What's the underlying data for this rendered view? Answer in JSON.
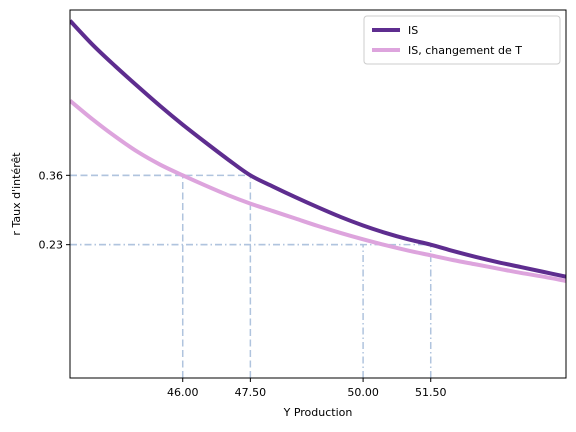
{
  "chart_data": {
    "type": "line",
    "xlabel": "Y Production",
    "ylabel": "r Taux d'intérêt",
    "xlim": [
      43.5,
      54.5
    ],
    "ylim": [
      -0.02,
      0.67
    ],
    "x_ticks": [
      46.0,
      47.5,
      50.0,
      51.5
    ],
    "x_tick_labels": [
      "46.00",
      "47.50",
      "50.00",
      "51.50"
    ],
    "y_ticks": [
      0.23,
      0.36
    ],
    "y_tick_labels": [
      "0.23",
      "0.36"
    ],
    "grid": false,
    "legend_position": "top-right",
    "series": [
      {
        "name": "IS",
        "color": "#5e2d8f",
        "x": [
          43.5,
          44.0,
          44.5,
          45.0,
          45.5,
          46.0,
          46.5,
          47.0,
          47.5,
          48.0,
          48.5,
          49.0,
          49.5,
          50.0,
          50.5,
          51.0,
          51.5,
          52.0,
          52.5,
          53.0,
          53.5,
          54.0,
          54.5
        ],
        "y": [
          0.65,
          0.605,
          0.565,
          0.527,
          0.49,
          0.455,
          0.422,
          0.39,
          0.36,
          0.339,
          0.319,
          0.3,
          0.282,
          0.266,
          0.252,
          0.24,
          0.23,
          0.218,
          0.207,
          0.197,
          0.188,
          0.179,
          0.17
        ]
      },
      {
        "name": "IS, changement de T",
        "color": "#dda4dd",
        "x": [
          43.5,
          44.0,
          44.5,
          45.0,
          45.5,
          46.0,
          46.5,
          47.0,
          47.5,
          48.0,
          48.5,
          49.0,
          49.5,
          50.0,
          50.5,
          51.0,
          51.5,
          52.0,
          52.5,
          53.0,
          53.5,
          54.0,
          54.5
        ],
        "y": [
          0.5,
          0.465,
          0.433,
          0.404,
          0.38,
          0.36,
          0.341,
          0.323,
          0.307,
          0.293,
          0.279,
          0.265,
          0.252,
          0.24,
          0.229,
          0.219,
          0.21,
          0.201,
          0.193,
          0.185,
          0.177,
          0.17,
          0.162
        ]
      }
    ],
    "reference_lines": [
      {
        "x": 46.0,
        "y": 0.36,
        "style": "dashed"
      },
      {
        "x": 47.5,
        "y": 0.36,
        "style": "dashed"
      },
      {
        "x": 50.0,
        "y": 0.23,
        "style": "dashdot"
      },
      {
        "x": 51.5,
        "y": 0.23,
        "style": "dashdot"
      }
    ],
    "reference_line_color": "#b0c4de"
  }
}
